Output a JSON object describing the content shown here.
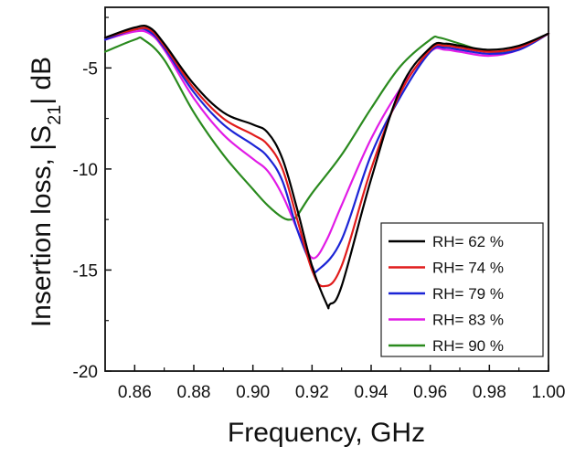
{
  "chart_data": {
    "type": "line",
    "title": "",
    "xlabel": "Frequency, GHz",
    "ylabel_parts": [
      "Insertion loss, |S",
      "21",
      "| dB"
    ],
    "xlim": [
      0.85,
      1.0
    ],
    "ylim": [
      -20,
      -2
    ],
    "xticks": [
      0.86,
      0.88,
      0.9,
      0.92,
      0.94,
      0.96,
      0.98,
      1.0
    ],
    "xtick_labels": [
      "0.86",
      "0.88",
      "0.90",
      "0.92",
      "0.94",
      "0.96",
      "0.98",
      "1.00"
    ],
    "yticks": [
      -20,
      -15,
      -10,
      -5
    ],
    "ytick_labels": [
      "-20",
      "-15",
      "-10",
      "-5"
    ],
    "grid": false,
    "legend_position": "bottom-right",
    "series": [
      {
        "name": "RH= 62 %",
        "color": "#000000",
        "x": [
          0.85,
          0.86,
          0.865,
          0.87,
          0.88,
          0.89,
          0.9,
          0.905,
          0.91,
          0.915,
          0.92,
          0.925,
          0.926,
          0.93,
          0.94,
          0.95,
          0.96,
          0.965,
          0.97,
          0.98,
          0.99,
          1.0
        ],
        "y": [
          -3.5,
          -3.0,
          -3.0,
          -3.8,
          -5.8,
          -7.2,
          -7.8,
          -8.2,
          -9.5,
          -12.0,
          -14.8,
          -16.7,
          -16.7,
          -15.8,
          -10.5,
          -6.0,
          -4.0,
          -3.8,
          -3.9,
          -4.1,
          -3.9,
          -3.3
        ]
      },
      {
        "name": "RH= 74 %",
        "color": "#e11b1b",
        "x": [
          0.85,
          0.86,
          0.865,
          0.87,
          0.88,
          0.89,
          0.9,
          0.905,
          0.91,
          0.915,
          0.92,
          0.924,
          0.93,
          0.94,
          0.95,
          0.96,
          0.965,
          0.97,
          0.98,
          0.99,
          1.0
        ],
        "y": [
          -3.5,
          -3.1,
          -3.1,
          -3.9,
          -6.0,
          -7.5,
          -8.3,
          -8.8,
          -10.0,
          -12.5,
          -15.0,
          -15.8,
          -14.8,
          -10.0,
          -6.2,
          -4.1,
          -3.9,
          -4.0,
          -4.2,
          -4.0,
          -3.3
        ]
      },
      {
        "name": "RH= 79 %",
        "color": "#1b24d6",
        "x": [
          0.85,
          0.86,
          0.865,
          0.87,
          0.88,
          0.89,
          0.9,
          0.905,
          0.91,
          0.915,
          0.92,
          0.922,
          0.93,
          0.94,
          0.95,
          0.96,
          0.965,
          0.97,
          0.98,
          0.99,
          1.0
        ],
        "y": [
          -3.6,
          -3.1,
          -3.2,
          -4.0,
          -6.2,
          -7.8,
          -8.8,
          -9.4,
          -10.6,
          -13.0,
          -14.8,
          -15.0,
          -13.5,
          -9.3,
          -6.4,
          -4.2,
          -4.0,
          -4.1,
          -4.3,
          -4.1,
          -3.3
        ]
      },
      {
        "name": "RH= 83 %",
        "color": "#e11be6",
        "x": [
          0.85,
          0.86,
          0.865,
          0.87,
          0.88,
          0.89,
          0.9,
          0.905,
          0.91,
          0.915,
          0.918,
          0.921,
          0.925,
          0.93,
          0.94,
          0.95,
          0.96,
          0.965,
          0.97,
          0.98,
          0.99,
          1.0
        ],
        "y": [
          -3.6,
          -3.2,
          -3.3,
          -4.1,
          -6.5,
          -8.3,
          -9.5,
          -10.1,
          -11.3,
          -13.0,
          -14.0,
          -14.4,
          -13.5,
          -11.8,
          -8.5,
          -6.0,
          -4.2,
          -4.1,
          -4.2,
          -4.4,
          -4.1,
          -3.3
        ]
      },
      {
        "name": "RH= 90 %",
        "color": "#2a8a1e",
        "x": [
          0.85,
          0.86,
          0.863,
          0.87,
          0.88,
          0.89,
          0.9,
          0.905,
          0.91,
          0.913,
          0.915,
          0.92,
          0.93,
          0.94,
          0.95,
          0.96,
          0.963,
          0.97,
          0.98,
          0.99,
          1.0
        ],
        "y": [
          -4.2,
          -3.6,
          -3.6,
          -4.6,
          -7.2,
          -9.3,
          -11.0,
          -11.8,
          -12.4,
          -12.5,
          -12.3,
          -11.2,
          -9.3,
          -7.0,
          -4.9,
          -3.6,
          -3.5,
          -3.8,
          -4.2,
          -4.0,
          -3.3
        ]
      }
    ]
  }
}
